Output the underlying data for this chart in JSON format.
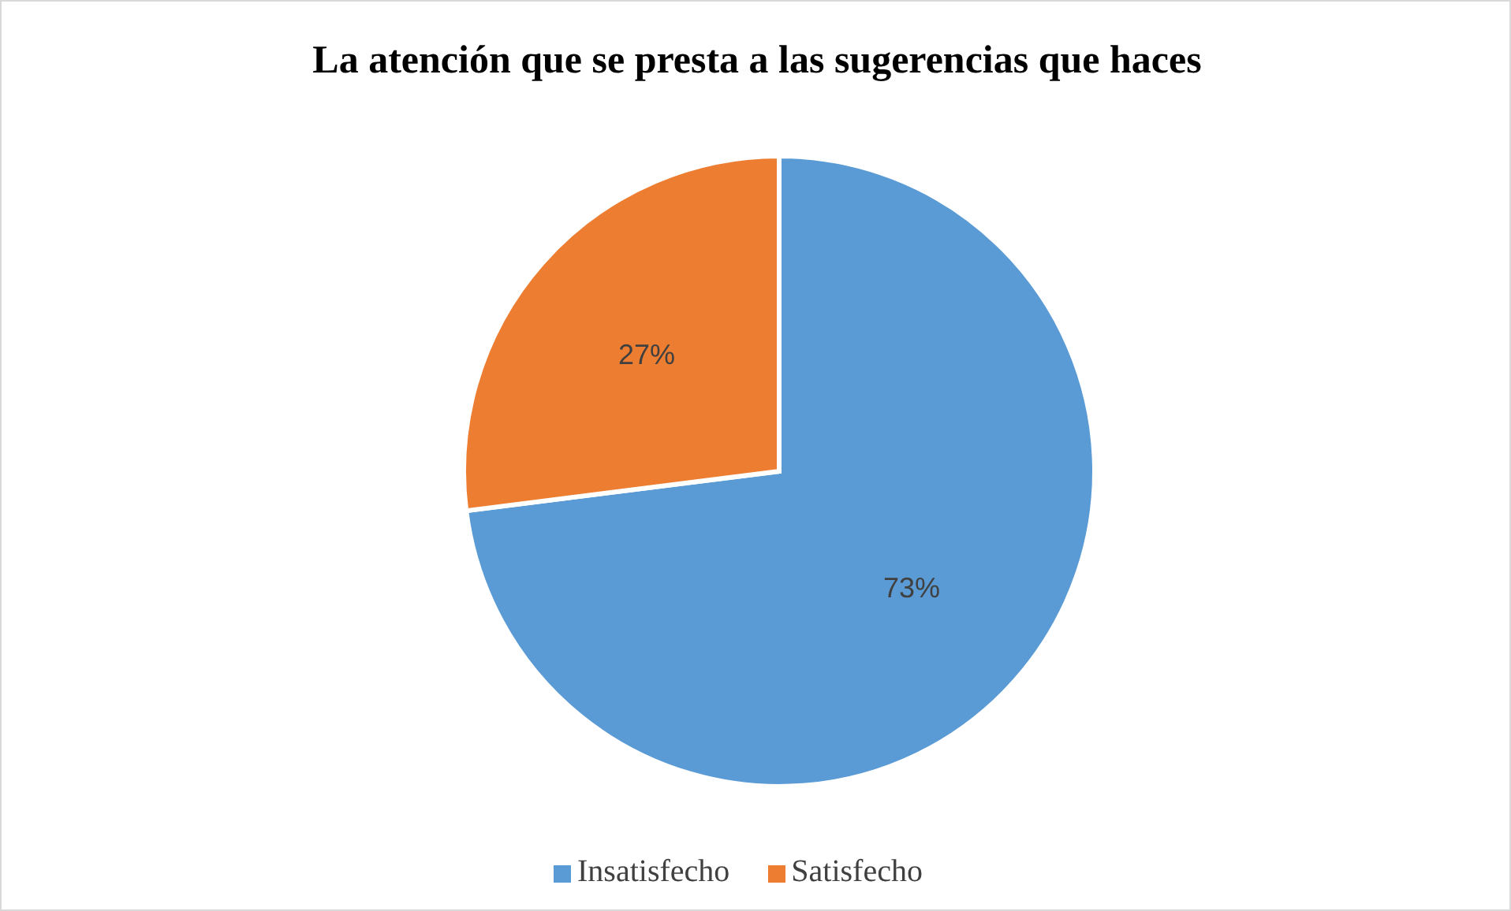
{
  "chart_data": {
    "type": "pie",
    "title": "La atención que se presta a las sugerencias que haces",
    "categories": [
      "Insatisfecho",
      "Satisfecho"
    ],
    "values": [
      73,
      27
    ],
    "colors": [
      "#5b9bd5",
      "#ed7d31"
    ],
    "value_labels": [
      "73%",
      "27%"
    ],
    "legend": "bottom"
  }
}
